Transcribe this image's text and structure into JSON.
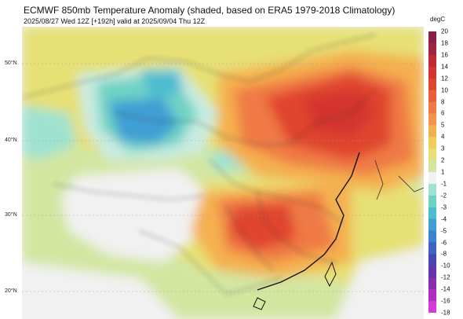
{
  "header": {
    "title": "ECMWF 850mb Temperature Anomaly (shaded, based on ERA5 1979-2018 Climatology)",
    "subtitle": "2025/08/27 Wed 12Z [+192h] valid at 2025/09/04 Thu 12Z"
  },
  "map": {
    "lat_labels": [
      "50°N",
      "40°N",
      "30°N",
      "20°N"
    ]
  },
  "colorbar": {
    "unit": "degC",
    "ticks": [
      "20",
      "18",
      "16",
      "14",
      "12",
      "10",
      "8",
      "6",
      "5",
      "4",
      "3",
      "2",
      "1",
      "-1",
      "-2",
      "-3",
      "-4",
      "-5",
      "-6",
      "-8",
      "-10",
      "-12",
      "-14",
      "-16",
      "-18"
    ],
    "colors": {
      "20": "#6a1058",
      "18": "#8a1f4a",
      "16": "#a2233e",
      "14": "#bf2a33",
      "12": "#d3352f",
      "10": "#e0452f",
      "8": "#ea5f3a",
      "6": "#ef7a45",
      "5": "#f39350",
      "4": "#f4b050",
      "3": "#f1cc5a",
      "2": "#e6e074",
      "1": "#d3e6a0",
      "0": "#f1f1f1",
      "-1": "#c9ebe2",
      "-2": "#9fe2d0",
      "-3": "#6fd3c4",
      "-4": "#4dbbd0",
      "-5": "#3f9fd3",
      "-6": "#3d82ce",
      "-8": "#3f63c2",
      "-10": "#4a45b4",
      "-12": "#6534aa",
      "-14": "#8a2dae",
      "-16": "#b02fc1",
      "-18": "#d33ad6"
    }
  }
}
